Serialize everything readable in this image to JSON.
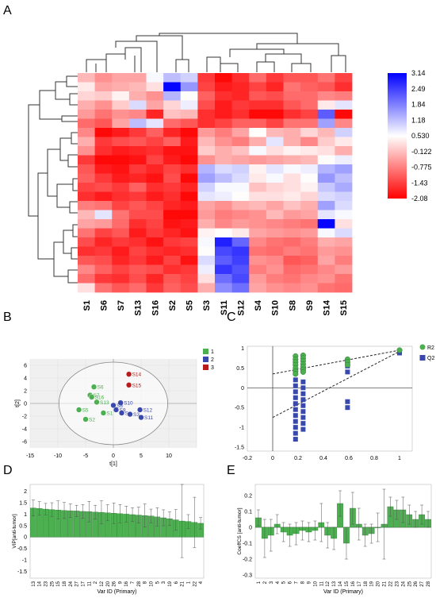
{
  "panels": {
    "A": "A",
    "B": "B",
    "C": "C",
    "D": "D",
    "E": "E"
  },
  "heatmap": {
    "columns": [
      "S1",
      "S6",
      "S7",
      "S13",
      "S16",
      "S2",
      "S5",
      "S3",
      "S11",
      "S12",
      "S4",
      "S10",
      "S8",
      "S9",
      "S14",
      "S15"
    ],
    "color_scale_ticks": [
      "3.14",
      "2.49",
      "1.84",
      "1.18",
      "0.530",
      "-0.122",
      "-0.775",
      "-1.43",
      "-2.08"
    ],
    "values": [
      [
        -0.2,
        -0.6,
        -0.4,
        -0.4,
        0.6,
        1.2,
        1.0,
        -1.5,
        -2.0,
        -1.6,
        -1.0,
        -1.5,
        -1.2,
        -1.2,
        -0.9,
        -1.4
      ],
      [
        0.3,
        -0.4,
        -0.3,
        -0.2,
        0.2,
        3.1,
        1.6,
        -1.4,
        -1.8,
        -1.7,
        -1.4,
        -1.7,
        -0.9,
        -1.1,
        -1.2,
        -1.6
      ],
      [
        0.1,
        0.0,
        0.4,
        -0.3,
        -0.6,
        1.3,
        0.5,
        -1.1,
        -1.6,
        -1.7,
        -1.2,
        -1.3,
        -1.0,
        -1.0,
        -0.7,
        -0.8
      ],
      [
        -0.3,
        -0.6,
        0.0,
        0.9,
        -0.4,
        0.1,
        0.7,
        -1.3,
        -1.8,
        -1.5,
        -1.6,
        -1.6,
        -1.2,
        -1.0,
        0.3,
        0.8
      ],
      [
        -0.5,
        -0.9,
        -0.6,
        -0.7,
        -1.7,
        -0.1,
        -0.2,
        -1.6,
        -1.8,
        -1.6,
        -2.0,
        -2.0,
        -1.6,
        -1.4,
        2.2,
        -2.0
      ],
      [
        -1.0,
        -1.2,
        -0.4,
        1.2,
        0.8,
        -1.0,
        -1.2,
        -1.6,
        -1.4,
        -1.1,
        -1.1,
        -1.4,
        -0.9,
        -0.9,
        1.5,
        -0.7
      ],
      [
        -0.7,
        -2.0,
        -1.8,
        -1.5,
        -1.1,
        -1.7,
        -2.0,
        -0.5,
        -0.8,
        -0.4,
        0.5,
        -0.2,
        -0.3,
        0.1,
        -0.2,
        1.0
      ],
      [
        -0.3,
        -1.5,
        -1.3,
        -1.2,
        -1.4,
        -1.1,
        -1.8,
        -0.2,
        -0.6,
        -0.8,
        -0.3,
        0.8,
        -0.3,
        -0.7,
        0.0,
        0.3
      ],
      [
        -0.6,
        -1.6,
        -1.8,
        -1.7,
        -1.6,
        -1.9,
        -1.9,
        0.0,
        -0.3,
        -0.1,
        0.6,
        0.2,
        0.4,
        0.3,
        0.2,
        -0.3
      ],
      [
        -1.5,
        -2.0,
        -2.0,
        -1.9,
        -1.4,
        -1.8,
        -2.0,
        -0.6,
        -0.3,
        -0.4,
        -0.5,
        -0.4,
        -0.3,
        -0.2,
        0.5,
        0.7
      ],
      [
        -1.2,
        -1.8,
        -1.9,
        -1.5,
        -1.7,
        -1.4,
        -1.6,
        1.3,
        0.9,
        1.0,
        0.4,
        0.8,
        0.6,
        0.7,
        1.3,
        1.5
      ],
      [
        -1.1,
        -1.5,
        -1.8,
        -1.7,
        -1.9,
        -1.3,
        -2.0,
        1.5,
        1.2,
        0.9,
        0.3,
        0.6,
        0.2,
        0.5,
        1.6,
        1.2
      ],
      [
        -1.4,
        -1.3,
        -1.5,
        -1.1,
        -1.6,
        -1.5,
        -1.7,
        1.0,
        0.6,
        0.6,
        -0.1,
        0.1,
        0.2,
        0.4,
        1.1,
        1.4
      ],
      [
        -1.6,
        -1.8,
        -1.6,
        -1.5,
        -1.8,
        -1.6,
        -2.0,
        0.8,
        0.7,
        0.5,
        0.2,
        0.2,
        0.3,
        0.1,
        0.9,
        1.0
      ],
      [
        -0.8,
        -0.9,
        -1.4,
        -1.2,
        -1.4,
        -1.7,
        -1.8,
        -0.4,
        -0.6,
        -0.3,
        -0.2,
        -0.4,
        -0.1,
        -0.3,
        1.5,
        0.9
      ],
      [
        -0.2,
        0.8,
        -0.9,
        -1.3,
        -1.3,
        -2.0,
        -2.0,
        -0.5,
        -0.8,
        -0.7,
        -0.6,
        -0.2,
        -0.5,
        -0.4,
        0.8,
        0.6
      ],
      [
        -0.4,
        -0.5,
        -1.0,
        -1.6,
        -1.4,
        -1.9,
        -1.8,
        -0.3,
        -0.7,
        -0.5,
        -0.6,
        -0.7,
        -0.8,
        -0.9,
        3.1,
        0.2
      ],
      [
        -0.9,
        -1.4,
        -1.2,
        -1.8,
        -1.5,
        -1.7,
        -1.9,
        0.4,
        0.5,
        0.3,
        -0.4,
        -0.5,
        -0.6,
        -0.5,
        0.6,
        0.9
      ],
      [
        -1.3,
        -1.7,
        -1.5,
        -1.6,
        -1.9,
        -1.5,
        -1.4,
        0.6,
        2.8,
        2.1,
        -0.7,
        -0.9,
        -1.0,
        -0.8,
        -0.3,
        -0.4
      ],
      [
        -1.6,
        -1.5,
        -1.8,
        -1.4,
        -1.6,
        -1.7,
        -1.6,
        0.5,
        2.4,
        2.6,
        -0.9,
        -1.0,
        -0.8,
        -0.9,
        -0.5,
        -0.6
      ],
      [
        -1.2,
        -1.3,
        -1.7,
        -1.5,
        -1.8,
        -1.4,
        -1.9,
        0.9,
        2.2,
        2.5,
        -0.6,
        -0.7,
        -1.2,
        -1.1,
        -0.4,
        -0.8
      ],
      [
        -0.7,
        -1.1,
        -1.4,
        -1.2,
        -1.3,
        -1.6,
        -1.5,
        0.7,
        2.6,
        2.3,
        -0.8,
        -0.6,
        -1.0,
        -0.9,
        -0.7,
        -0.5
      ],
      [
        -1.0,
        -1.5,
        -1.6,
        -1.3,
        -1.7,
        -1.2,
        -1.4,
        0.2,
        2.0,
        2.4,
        -0.5,
        -0.8,
        -0.9,
        -0.7,
        -0.6,
        -0.9
      ],
      [
        0.2,
        -0.9,
        -1.2,
        -1.0,
        -1.5,
        -1.1,
        -1.3,
        -0.3,
        1.7,
        2.0,
        -0.4,
        -0.6,
        -0.7,
        -0.6,
        -0.9,
        -1.0
      ]
    ]
  },
  "pca": {
    "legend": [
      "1",
      "2",
      "3"
    ],
    "colors": [
      "#4caf50",
      "#3949ab",
      "#b71c1c"
    ],
    "xlabel": "t[1]",
    "ylabel": "t[2]",
    "xticks": [
      "-15",
      "-10",
      "-5",
      "0",
      "5",
      "10"
    ],
    "yticks": [
      "6",
      "4",
      "2",
      "0",
      "-2",
      "-4",
      "-6"
    ],
    "points": [
      {
        "label": "S6",
        "x": -3.5,
        "y": 2.6,
        "group": 0
      },
      {
        "label": "S7",
        "x": -4.2,
        "y": 1.3,
        "group": 0
      },
      {
        "label": "S16",
        "x": -3.9,
        "y": 1.0,
        "group": 0
      },
      {
        "label": "S13",
        "x": -3.0,
        "y": 0.2,
        "group": 0
      },
      {
        "label": "S5",
        "x": -6.2,
        "y": -1.0,
        "group": 0
      },
      {
        "label": "S1",
        "x": -1.8,
        "y": -1.5,
        "group": 0
      },
      {
        "label": "S2",
        "x": -5.0,
        "y": -2.5,
        "group": 0
      },
      {
        "label": "S10",
        "x": 1.3,
        "y": 0.1,
        "group": 1
      },
      {
        "label": "S8",
        "x": 0.0,
        "y": -0.3,
        "group": 1
      },
      {
        "label": "S9",
        "x": 0.5,
        "y": -1.0,
        "group": 1
      },
      {
        "label": "S4",
        "x": 1.5,
        "y": -1.5,
        "group": 1
      },
      {
        "label": "S12",
        "x": 4.8,
        "y": -1.0,
        "group": 1
      },
      {
        "label": "S3",
        "x": 3.0,
        "y": -1.7,
        "group": 1
      },
      {
        "label": "S11",
        "x": 5.0,
        "y": -2.2,
        "group": 1
      },
      {
        "label": "S14",
        "x": 2.8,
        "y": 4.6,
        "group": 2
      },
      {
        "label": "S15",
        "x": 2.8,
        "y": 2.9,
        "group": 2
      }
    ]
  },
  "permutation": {
    "legend": [
      "R2",
      "Q2"
    ],
    "colors": [
      "#4caf50",
      "#3949ab"
    ],
    "xticks": [
      "-0.2",
      "0",
      "0.2",
      "0.4",
      "0.6",
      "0.8",
      "1"
    ],
    "yticks": [
      "1",
      "0.5",
      "0",
      "-0.5",
      "-1",
      "-1.5"
    ],
    "r2_line": [
      [
        0,
        0.35
      ],
      [
        1,
        0.95
      ]
    ],
    "q2_line": [
      [
        0,
        -0.75
      ],
      [
        1,
        0.92
      ]
    ],
    "r2_points": [
      [
        0.18,
        0.8
      ],
      [
        0.18,
        0.72
      ],
      [
        0.18,
        0.65
      ],
      [
        0.18,
        0.58
      ],
      [
        0.18,
        0.5
      ],
      [
        0.18,
        0.42
      ],
      [
        0.18,
        0.35
      ],
      [
        0.24,
        0.82
      ],
      [
        0.24,
        0.75
      ],
      [
        0.24,
        0.68
      ],
      [
        0.24,
        0.6
      ],
      [
        0.24,
        0.53
      ],
      [
        0.24,
        0.46
      ],
      [
        0.24,
        0.4
      ],
      [
        0.59,
        0.72
      ],
      [
        0.59,
        0.65
      ],
      [
        0.59,
        0.58
      ],
      [
        1.0,
        0.95
      ]
    ],
    "q2_points": [
      [
        0.18,
        0.2
      ],
      [
        0.18,
        0.05
      ],
      [
        0.18,
        -0.1
      ],
      [
        0.18,
        -0.25
      ],
      [
        0.18,
        -0.4
      ],
      [
        0.18,
        -0.55
      ],
      [
        0.18,
        -0.7
      ],
      [
        0.18,
        -0.85
      ],
      [
        0.18,
        -1.0
      ],
      [
        0.18,
        -1.15
      ],
      [
        0.18,
        -1.3
      ],
      [
        0.24,
        0.15
      ],
      [
        0.24,
        0.0
      ],
      [
        0.24,
        -0.15
      ],
      [
        0.24,
        -0.3
      ],
      [
        0.24,
        -0.45
      ],
      [
        0.24,
        -0.6
      ],
      [
        0.24,
        -0.75
      ],
      [
        0.24,
        -0.9
      ],
      [
        0.24,
        -1.05
      ],
      [
        0.59,
        0.55
      ],
      [
        0.59,
        0.4
      ],
      [
        0.59,
        -0.35
      ],
      [
        0.59,
        -0.5
      ],
      [
        1.0,
        0.88
      ]
    ]
  },
  "vip": {
    "ylabel": "VIP[anti-tumor]",
    "xlabel": "Var ID (Primary)",
    "yticks": [
      "2",
      "1.5",
      "1",
      "0.5",
      "0",
      "-0.5",
      "-1",
      "-1.5"
    ],
    "categories": [
      "13",
      "14",
      "23",
      "25",
      "15",
      "18",
      "24",
      "27",
      "17",
      "11",
      "2",
      "12",
      "20",
      "26",
      "9",
      "16",
      "7",
      "28",
      "8",
      "10",
      "5",
      "3",
      "19",
      "6",
      "21",
      "1",
      "22",
      "4"
    ],
    "values": [
      1.27,
      1.25,
      1.22,
      1.2,
      1.18,
      1.16,
      1.15,
      1.14,
      1.12,
      1.11,
      1.09,
      1.08,
      1.06,
      1.04,
      1.02,
      1.0,
      0.98,
      0.96,
      0.94,
      0.92,
      0.88,
      0.84,
      0.8,
      0.75,
      0.7,
      0.68,
      0.64,
      0.6
    ],
    "errors": [
      0.35,
      0.3,
      0.25,
      0.3,
      0.4,
      0.35,
      0.3,
      0.25,
      0.3,
      0.45,
      0.3,
      0.5,
      0.35,
      0.45,
      0.4,
      0.35,
      0.3,
      0.35,
      0.5,
      0.3,
      0.4,
      0.35,
      0.3,
      0.45,
      1.6,
      0.3,
      1.1,
      0.25
    ]
  },
  "coeff": {
    "ylabel": "CoeffCS [anti-tumor]",
    "xlabel": "Var ID (Primary)",
    "yticks": [
      "0.2",
      "0.1",
      "0",
      "-0.1",
      "-0.2",
      "-0.3"
    ],
    "categories": [
      "1",
      "2",
      "3",
      "4",
      "5",
      "6",
      "7",
      "8",
      "9",
      "10",
      "11",
      "12",
      "13",
      "14",
      "15",
      "16",
      "17",
      "18",
      "19",
      "20",
      "21",
      "22",
      "23",
      "24",
      "25",
      "26",
      "27",
      "28"
    ],
    "values": [
      0.06,
      -0.07,
      -0.05,
      0.02,
      -0.03,
      -0.05,
      -0.04,
      -0.02,
      -0.03,
      -0.02,
      0.03,
      -0.05,
      -0.07,
      0.15,
      -0.1,
      0.12,
      0.02,
      -0.05,
      -0.04,
      0.0,
      0.02,
      0.13,
      0.11,
      0.11,
      0.08,
      0.05,
      0.08,
      0.05
    ],
    "errors": [
      0.05,
      0.12,
      0.1,
      0.06,
      0.06,
      0.07,
      0.07,
      0.06,
      0.06,
      0.06,
      0.12,
      0.08,
      0.07,
      0.08,
      0.1,
      0.1,
      0.1,
      0.07,
      0.06,
      0.09,
      0.22,
      0.06,
      0.06,
      0.08,
      0.06,
      0.05,
      0.06,
      0.05
    ]
  }
}
